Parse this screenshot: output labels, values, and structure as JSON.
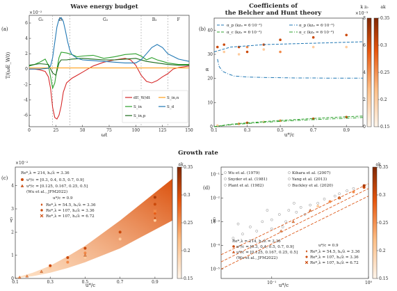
{
  "panel_a": {
    "title": "Wave energy budget",
    "letter": "(a)",
    "exponent": "×10⁻²",
    "ylabel": "T/(ωE_W0)",
    "xlabel": "ωt",
    "phases": [
      "G₁",
      "B₁",
      "G₂",
      "B₂",
      "F"
    ]
  },
  "panel_b": {
    "title_line1": "Coefficients of",
    "title_line2": "the Belcher and Hunt theory",
    "letter": "(b)",
    "ylabel": "α",
    "xlabel": "u*/c",
    "colorbar_k": "k z₀",
    "colorbar_ak": "ak",
    "colorbar_k_note": "×10⁻³",
    "legend": [
      "α_p (kz₀ = 6·10⁻²)",
      "α_p (kz₀ = 6·10⁻³)",
      "α_c (kz₀ = 6·10⁻²)",
      "α_c (kz₀ = 6·10⁻³)"
    ]
  },
  "growth_title": "Growth rate",
  "panel_c": {
    "letter": "(c)",
    "exponent": "×10⁻²",
    "ylabel": "γ̃",
    "xlabel": "u*/c",
    "colorbar": "ak",
    "legend_group1_title": "Re*,λ = 214, hₛ/λ = 3.36",
    "legend_group1": [
      "u*/c = [0.3, 0.4, 0.5, 0.7, 0.9]",
      "u*/c = [0.125, 0.167, 0.25, 0.5]",
      "(Wu et al., JFM2022)"
    ],
    "legend_group2_title": "u*/c = 0.9",
    "legend_group2": [
      "Re*,λ = 54.5, hₛ/λ = 3.36",
      "Re*,λ = 107, hₛ/λ = 3.36",
      "Re*,λ = 107, hₛ/λ = 6.72"
    ]
  },
  "panel_d": {
    "letter": "(d)",
    "ylabel": "γ̃",
    "xlabel": "u*/c",
    "colorbar": "ak",
    "legend_refs": [
      "Wu et al. (1979)",
      "Kihara et al. (2007)",
      "Snyder et al. (1981)",
      "Yang et al. (2013)",
      "Plant et al. (1982)",
      "Buckley et al. (2020)"
    ],
    "legend_group1_title": "Re*,λ = 214, hₛ/λ = 3.36",
    "legend_group1": [
      "u*/c = [0.3, 0.4, 0.5, 0.7, 0.9]",
      "u*/c = [0.125, 0.167, 0.25, 0.5]",
      "(Wu et al., JFM2022)"
    ],
    "legend_group2_title": "u*/c = 0.9",
    "legend_group2": [
      "Re*,λ = 54.5, hₛ/λ = 3.36",
      "Re*,λ = 107, hₛ/λ = 3.36",
      "Re*,λ = 107, hₛ/λ = 6.72"
    ]
  },
  "colors": {
    "dEdt": "#d62728",
    "S_in": "#2ca02c",
    "S_inp": "#1a6b1a",
    "S_inn": "#ff9f1c",
    "S_d": "#1f77b4",
    "alpha_p": "#1f77b4",
    "alpha_c": "#2ca02c",
    "colormap_low": "#fff1e6",
    "colormap_high": "#7f2704"
  },
  "chart_data": [
    {
      "type": "line",
      "panel": "a",
      "xlim": [
        0,
        150
      ],
      "ylim": [
        -7.5,
        7
      ],
      "xticks": [
        0,
        25,
        50,
        75,
        100,
        125,
        150
      ],
      "yticks": [
        -6,
        -4,
        -2,
        0,
        2,
        4,
        6
      ],
      "phase_boundaries": [
        22,
        38,
        105,
        130
      ],
      "grid": false,
      "legend_position": "lower-right",
      "series": [
        {
          "name": "dE_W/dt",
          "key": "dEdt",
          "x": [
            0,
            5,
            10,
            15,
            18,
            20,
            22,
            24,
            26,
            28,
            30,
            32,
            35,
            40,
            45,
            50,
            55,
            60,
            70,
            80,
            85,
            90,
            95,
            100,
            105,
            110,
            115,
            120,
            125,
            130,
            135,
            140,
            145,
            150
          ],
          "y": [
            0,
            0,
            -0.1,
            -0.3,
            -1,
            -2.5,
            -5,
            -6.3,
            -6.5,
            -6,
            -4.8,
            -3,
            -1.8,
            -1.2,
            -0.8,
            -0.4,
            0,
            0.4,
            0.9,
            1.2,
            1.3,
            1.4,
            1.2,
            0.5,
            -0.8,
            -1.6,
            -1.8,
            -1.5,
            -1.0,
            -0.6,
            0,
            0.2,
            0.3,
            0.4
          ]
        },
        {
          "name": "S_in",
          "key": "S_in",
          "x": [
            0,
            5,
            10,
            15,
            18,
            20,
            22,
            24,
            26,
            28,
            30,
            35,
            40,
            45,
            50,
            60,
            70,
            80,
            90,
            100,
            105,
            110,
            115,
            120,
            125,
            130,
            140,
            150
          ],
          "y": [
            0.4,
            0.6,
            0.9,
            1.3,
            0.5,
            -1,
            -2.5,
            -1.8,
            0,
            1.5,
            2.2,
            2.1,
            1.9,
            1.6,
            1.7,
            1.8,
            1.4,
            1.6,
            1.9,
            2.0,
            1.7,
            1.2,
            1.5,
            1.2,
            1.0,
            0.8,
            0.6,
            0.6
          ]
        },
        {
          "name": "S_in,p",
          "key": "S_inp",
          "x": [
            0,
            10,
            18,
            22,
            25,
            28,
            30,
            35,
            40,
            50,
            60,
            70,
            80,
            90,
            100,
            110,
            120,
            130,
            140,
            150
          ],
          "y": [
            0.5,
            0.7,
            0.6,
            -0.5,
            -0.8,
            0.8,
            1.2,
            1.2,
            1.3,
            1.4,
            1.3,
            1.2,
            1.2,
            1.3,
            1.4,
            1.0,
            0.8,
            0.6,
            0.5,
            0.5
          ]
        },
        {
          "name": "S_in,n",
          "key": "S_inn",
          "x": [
            0,
            25,
            50,
            75,
            100,
            125,
            150
          ],
          "y": [
            0.15,
            0.15,
            0.15,
            0.15,
            0.15,
            0.15,
            0.15
          ]
        },
        {
          "name": "S_d",
          "key": "S_d",
          "x": [
            0,
            10,
            18,
            20,
            22,
            24,
            26,
            28,
            30,
            32,
            34,
            36,
            38,
            40,
            45,
            50,
            60,
            70,
            80,
            90,
            100,
            105,
            110,
            115,
            120,
            125,
            130,
            140,
            150
          ],
          "y": [
            0,
            0,
            0.1,
            0.4,
            1.5,
            3.5,
            5.5,
            6.5,
            6.7,
            6.2,
            5.0,
            3.6,
            2.5,
            1.9,
            1.4,
            1.2,
            1.1,
            1.0,
            0.9,
            0.8,
            0.8,
            1.2,
            2.0,
            2.8,
            3.2,
            2.8,
            2.0,
            1.3,
            1.0
          ]
        }
      ]
    },
    {
      "type": "line",
      "panel": "b",
      "xlim": [
        0.1,
        1.0
      ],
      "ylim": [
        0,
        45
      ],
      "xticks": [
        0.1,
        0.3,
        0.5,
        0.7,
        0.9
      ],
      "yticks": [
        0,
        10,
        20,
        30,
        40
      ],
      "colorbar_k_range": [
        0,
        8
      ],
      "colorbar_k_ticks": [
        0,
        2,
        4,
        6,
        8
      ],
      "colorbar_ak_range": [
        0.15,
        0.35
      ],
      "colorbar_ak_ticks": [
        0.15,
        0.2,
        0.25,
        0.3,
        0.35
      ],
      "legend_position": "top",
      "series": [
        {
          "name": "α_p (kz₀ = 6·10⁻²)",
          "key": "alpha_p",
          "dash": "dashed",
          "x": [
            0.1,
            0.2,
            0.3,
            0.4,
            0.5,
            0.6,
            0.7,
            0.8,
            0.9,
            1.0
          ],
          "y": [
            31,
            33,
            33.5,
            34,
            34.2,
            34.4,
            34.6,
            34.8,
            35,
            35.2
          ]
        },
        {
          "name": "α_p (kz₀ = 6·10⁻³)",
          "key": "alpha_p",
          "dash": "dashdot",
          "x": [
            0.12,
            0.13,
            0.15,
            0.18,
            0.22,
            0.3,
            0.4,
            0.5,
            0.6,
            0.7,
            0.8,
            0.9,
            1.0
          ],
          "y": [
            28,
            25,
            23,
            22,
            21,
            20.6,
            20.4,
            20.3,
            20.2,
            20.2,
            20.1,
            20.1,
            20.1
          ]
        },
        {
          "name": "α_c (kz₀ = 6·10⁻²)",
          "key": "alpha_c",
          "dash": "dashed",
          "x": [
            0.1,
            0.2,
            0.3,
            0.4,
            0.5,
            0.6,
            0.7,
            0.8,
            0.9,
            1.0
          ],
          "y": [
            0,
            1,
            1.6,
            2.1,
            2.6,
            3.0,
            3.4,
            3.8,
            4.1,
            4.4
          ]
        },
        {
          "name": "α_c (kz₀ = 6·10⁻³)",
          "key": "alpha_c",
          "dash": "dashdot",
          "x": [
            0.1,
            0.2,
            0.3,
            0.4,
            0.5,
            0.6,
            0.7,
            0.8,
            0.9,
            1.0
          ],
          "y": [
            0,
            0.8,
            1.3,
            1.8,
            2.2,
            2.6,
            2.9,
            3.2,
            3.5,
            3.8
          ]
        }
      ],
      "points": [
        {
          "x": 0.12,
          "y": 31,
          "ak": 0.15
        },
        {
          "x": 0.12,
          "y": 33,
          "ak": 0.3
        },
        {
          "x": 0.16,
          "y": 31,
          "ak": 0.2
        },
        {
          "x": 0.16,
          "y": 34,
          "ak": 0.3
        },
        {
          "x": 0.25,
          "y": 30,
          "ak": 0.2
        },
        {
          "x": 0.25,
          "y": 33,
          "ak": 0.3
        },
        {
          "x": 0.3,
          "y": 33,
          "ak": 0.25
        },
        {
          "x": 0.3,
          "y": 31,
          "ak": 0.3
        },
        {
          "x": 0.4,
          "y": 32,
          "ak": 0.2
        },
        {
          "x": 0.4,
          "y": 34,
          "ak": 0.3
        },
        {
          "x": 0.5,
          "y": 31,
          "ak": 0.25
        },
        {
          "x": 0.5,
          "y": 36,
          "ak": 0.3
        },
        {
          "x": 0.7,
          "y": 33,
          "ak": 0.2
        },
        {
          "x": 0.7,
          "y": 37,
          "ak": 0.3
        },
        {
          "x": 0.9,
          "y": 33,
          "ak": 0.2
        },
        {
          "x": 0.9,
          "y": 38,
          "ak": 0.3
        },
        {
          "x": 0.12,
          "y": 0.5,
          "ak": 0.2
        },
        {
          "x": 0.25,
          "y": 1.2,
          "ak": 0.25
        },
        {
          "x": 0.3,
          "y": 1.6,
          "ak": 0.3
        },
        {
          "x": 0.4,
          "y": 2.0,
          "ak": 0.2
        },
        {
          "x": 0.5,
          "y": 2.5,
          "ak": 0.25
        },
        {
          "x": 0.7,
          "y": 3.3,
          "ak": 0.3
        },
        {
          "x": 0.9,
          "y": 4.0,
          "ak": 0.3
        }
      ]
    },
    {
      "type": "scatter",
      "panel": "c",
      "xlim": [
        0.1,
        1.0
      ],
      "ylim": [
        0,
        4.8
      ],
      "xticks": [
        0.1,
        0.3,
        0.5,
        0.7,
        0.9
      ],
      "yticks": [
        0,
        1,
        2,
        3,
        4
      ],
      "colorbar_range": [
        0.15,
        0.35
      ],
      "colorbar_ticks": [
        0.15,
        0.2,
        0.25,
        0.3,
        0.35
      ],
      "band_upper": {
        "x": [
          0.1,
          0.2,
          0.3,
          0.4,
          0.5,
          0.6,
          0.7,
          0.8,
          0.9,
          1.0
        ],
        "y": [
          0.03,
          0.25,
          0.55,
          0.95,
          1.4,
          1.95,
          2.5,
          3.1,
          3.7,
          4.3
        ]
      },
      "band_lower": {
        "x": [
          0.1,
          0.2,
          0.3,
          0.4,
          0.5,
          0.6,
          0.7,
          0.8,
          0.9,
          1.0
        ],
        "y": [
          0.01,
          0.1,
          0.25,
          0.45,
          0.7,
          1.0,
          1.3,
          1.7,
          2.1,
          2.5
        ]
      },
      "points": [
        {
          "x": 0.3,
          "y": 0.45,
          "ak": 0.2
        },
        {
          "x": 0.3,
          "y": 0.55,
          "ak": 0.3
        },
        {
          "x": 0.4,
          "y": 0.7,
          "ak": 0.25
        },
        {
          "x": 0.4,
          "y": 0.9,
          "ak": 0.3
        },
        {
          "x": 0.5,
          "y": 0.9,
          "ak": 0.2
        },
        {
          "x": 0.5,
          "y": 1.1,
          "ak": 0.25
        },
        {
          "x": 0.5,
          "y": 1.3,
          "ak": 0.3
        },
        {
          "x": 0.7,
          "y": 1.7,
          "ak": 0.2
        },
        {
          "x": 0.7,
          "y": 2.0,
          "ak": 0.3
        },
        {
          "x": 0.9,
          "y": 2.5,
          "ak": 0.2
        },
        {
          "x": 0.9,
          "y": 2.9,
          "ak": 0.25
        },
        {
          "x": 0.9,
          "y": 3.2,
          "ak": 0.3
        },
        {
          "x": 0.9,
          "y": 3.5,
          "ak": 0.32
        },
        {
          "x": 0.125,
          "y": 0.05,
          "ak": 0.25,
          "marker": "triangle"
        },
        {
          "x": 0.167,
          "y": 0.1,
          "ak": 0.25,
          "marker": "triangle"
        },
        {
          "x": 0.25,
          "y": 0.3,
          "ak": 0.25,
          "marker": "triangle"
        },
        {
          "x": 0.5,
          "y": 1.0,
          "ak": 0.25,
          "marker": "triangle"
        },
        {
          "x": 0.9,
          "y": 2.6,
          "ak": 0.3,
          "marker": "diamond"
        },
        {
          "x": 0.9,
          "y": 2.8,
          "ak": 0.28,
          "marker": "pentagon"
        },
        {
          "x": 0.9,
          "y": 2.9,
          "ak": 0.25,
          "marker": "cross"
        }
      ]
    },
    {
      "type": "scatter",
      "panel": "d",
      "xscale": "log",
      "yscale": "log",
      "xlim": [
        0.03,
        1.0
      ],
      "ylim": [
        4e-06,
        0.2
      ],
      "xtick_labels": [
        "10⁻¹",
        "10⁰"
      ],
      "ytick_labels": [
        "10⁻⁵",
        "10⁻⁴",
        "10⁻³",
        "10⁻²",
        "10⁻¹"
      ],
      "colorbar_range": [
        0.15,
        0.35
      ],
      "colorbar_ticks": [
        0.15,
        0.2,
        0.25,
        0.3,
        0.35
      ],
      "fit_lines": [
        {
          "x": [
            0.03,
            1.0
          ],
          "y": [
            4e-05,
            0.04
          ]
        },
        {
          "x": [
            0.03,
            1.0
          ],
          "y": [
            2e-05,
            0.025
          ]
        },
        {
          "x": [
            0.03,
            1.0
          ],
          "y": [
            1e-05,
            0.012
          ]
        }
      ],
      "references": [
        {
          "x": 0.05,
          "y": 0.0003
        },
        {
          "x": 0.06,
          "y": 0.0006
        },
        {
          "x": 0.07,
          "y": 0.0004
        },
        {
          "x": 0.08,
          "y": 0.001
        },
        {
          "x": 0.1,
          "y": 0.0012
        },
        {
          "x": 0.1,
          "y": 0.0005
        },
        {
          "x": 0.12,
          "y": 0.002
        },
        {
          "x": 0.14,
          "y": 0.001
        },
        {
          "x": 0.15,
          "y": 0.003
        },
        {
          "x": 0.18,
          "y": 0.0025
        },
        {
          "x": 0.2,
          "y": 0.004
        },
        {
          "x": 0.22,
          "y": 0.002
        },
        {
          "x": 0.25,
          "y": 0.005
        },
        {
          "x": 0.3,
          "y": 0.006
        },
        {
          "x": 0.35,
          "y": 0.009
        },
        {
          "x": 0.4,
          "y": 0.007
        },
        {
          "x": 0.45,
          "y": 0.012
        },
        {
          "x": 0.5,
          "y": 0.015
        },
        {
          "x": 0.6,
          "y": 0.02
        },
        {
          "x": 0.7,
          "y": 0.025
        },
        {
          "x": 0.04,
          "y": 0.0002
        },
        {
          "x": 0.045,
          "y": 0.0008
        },
        {
          "x": 0.09,
          "y": 0.003
        },
        {
          "x": 0.13,
          "y": 0.0006
        },
        {
          "x": 0.17,
          "y": 0.006
        }
      ],
      "points": [
        {
          "x": 0.3,
          "y": 0.0045,
          "ak": 0.2
        },
        {
          "x": 0.4,
          "y": 0.007,
          "ak": 0.25
        },
        {
          "x": 0.5,
          "y": 0.01,
          "ak": 0.3
        },
        {
          "x": 0.7,
          "y": 0.018,
          "ak": 0.25
        },
        {
          "x": 0.9,
          "y": 0.028,
          "ak": 0.3
        },
        {
          "x": 0.9,
          "y": 0.033,
          "ak": 0.32
        },
        {
          "x": 0.125,
          "y": 0.0004,
          "ak": 0.25,
          "marker": "triangle"
        },
        {
          "x": 0.167,
          "y": 0.001,
          "ak": 0.25,
          "marker": "triangle"
        },
        {
          "x": 0.25,
          "y": 0.003,
          "ak": 0.25,
          "marker": "triangle"
        },
        {
          "x": 0.5,
          "y": 0.01,
          "ak": 0.25,
          "marker": "triangle"
        }
      ]
    }
  ]
}
